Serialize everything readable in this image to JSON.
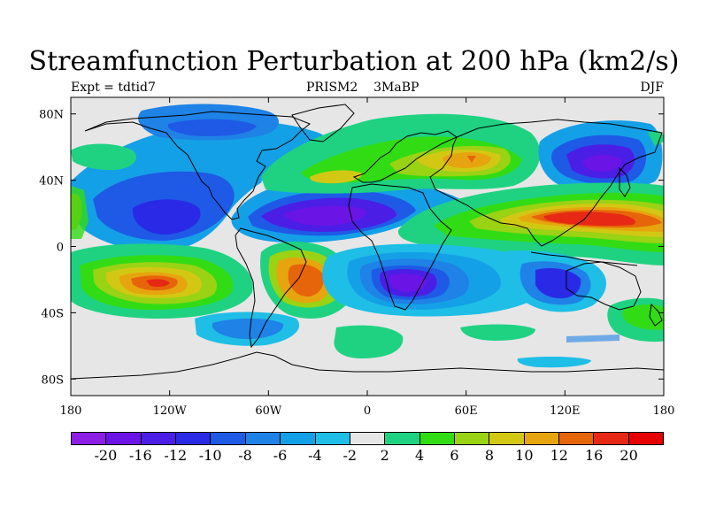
{
  "title": "Streamfunction Perturbation at 200 hPa (km2/s)",
  "subtitle": {
    "left": "Expt = tdtid7",
    "center": "PRISM2    3MaBP",
    "right": "DJF"
  },
  "axes": {
    "lon_ticks": [
      "180",
      "120W",
      "60W",
      "0",
      "60E",
      "120E",
      "180"
    ],
    "lat_ticks": [
      "80N",
      "40N",
      "0",
      "40S",
      "80S"
    ]
  },
  "colorbar": {
    "colors": [
      "#8c1ee6",
      "#6a14e6",
      "#4b1ee6",
      "#2a2ae6",
      "#1e5ae6",
      "#1e82e6",
      "#14a0e6",
      "#1ebee6",
      "#e6e6e6",
      "#1ed282",
      "#32dc14",
      "#9ad214",
      "#d2c814",
      "#e6a50f",
      "#e6640a",
      "#e62814",
      "#e60000"
    ],
    "labels": [
      "-20",
      "-16",
      "-12",
      "-10",
      "-8",
      "-6",
      "-4",
      "-2",
      "2",
      "4",
      "6",
      "8",
      "10",
      "12",
      "16",
      "20"
    ]
  },
  "colors": {
    "background_ocean": "#e6e6e6",
    "frame": "#000000"
  }
}
